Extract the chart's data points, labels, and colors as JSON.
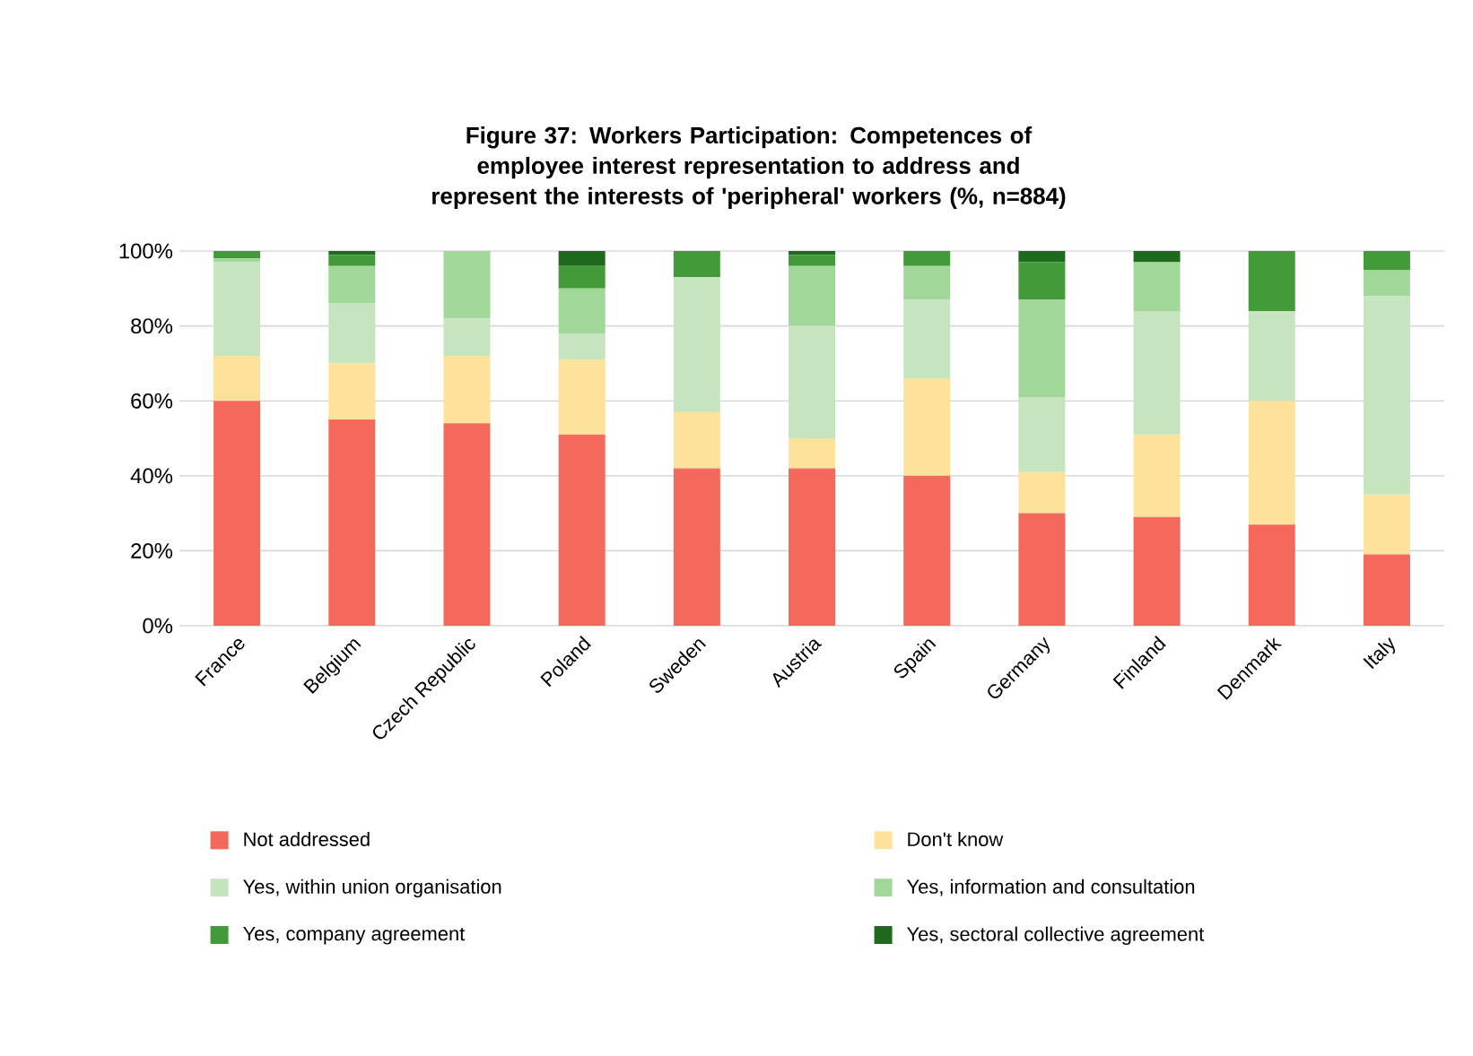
{
  "chart_data": {
    "type": "bar",
    "stacked": true,
    "title": "Figure 37: Workers Participation: Competences of employee interest representation to address and represent the interests of 'peripheral' workers (%, n=884)",
    "categories": [
      "France",
      "Belgium",
      "Czech Republic",
      "Poland",
      "Sweden",
      "Austria",
      "Spain",
      "Germany",
      "Finland",
      "Denmark",
      "Italy"
    ],
    "series": [
      {
        "name": "Not addressed",
        "color": "#f4695b",
        "values": [
          60,
          55,
          54,
          51,
          42,
          42,
          40,
          30,
          29,
          27,
          19
        ]
      },
      {
        "name": "Don't know",
        "color": "#fde29a",
        "values": [
          12,
          15,
          18,
          20,
          15,
          8,
          26,
          11,
          22,
          33,
          16
        ]
      },
      {
        "name": "Yes, within union organisation",
        "color": "#c6e5bf",
        "values": [
          25,
          16,
          10,
          7,
          36,
          30,
          21,
          20,
          33,
          24,
          53
        ]
      },
      {
        "name": "Yes, information and consultation",
        "color": "#a2d79a",
        "values": [
          1,
          10,
          18,
          12,
          0,
          16,
          9,
          26,
          13,
          0,
          7
        ]
      },
      {
        "name": "Yes, company agreement",
        "color": "#439a38",
        "values": [
          2,
          3,
          0,
          6,
          7,
          3,
          4,
          10,
          0,
          16,
          5
        ]
      },
      {
        "name": "Yes, sectoral collective agreement",
        "color": "#1f6b1d",
        "values": [
          0,
          1,
          0,
          4,
          0,
          1,
          0,
          3,
          3,
          0,
          0
        ]
      }
    ],
    "ylim": [
      0,
      100
    ],
    "yticks": [
      {
        "value": 0,
        "label": "0%"
      },
      {
        "value": 20,
        "label": "20%"
      },
      {
        "value": 40,
        "label": "40%"
      },
      {
        "value": 60,
        "label": "60%"
      },
      {
        "value": 80,
        "label": "80%"
      },
      {
        "value": 100,
        "label": "100%"
      }
    ],
    "grid": "y",
    "legend": "bottom"
  }
}
